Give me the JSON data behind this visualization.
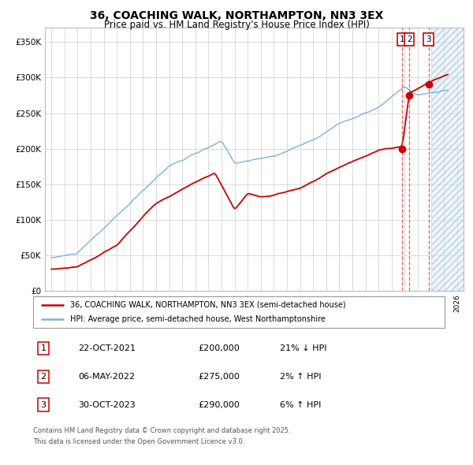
{
  "title": "36, COACHING WALK, NORTHAMPTON, NN3 3EX",
  "subtitle": "Price paid vs. HM Land Registry's House Price Index (HPI)",
  "legend_line1": "36, COACHING WALK, NORTHAMPTON, NN3 3EX (semi-detached house)",
  "legend_line2": "HPI: Average price, semi-detached house, West Northamptonshire",
  "footer1": "Contains HM Land Registry data © Crown copyright and database right 2025.",
  "footer2": "This data is licensed under the Open Government Licence v3.0.",
  "transactions": [
    {
      "num": 1,
      "date": "22-OCT-2021",
      "price": 200000,
      "hpi_rel": "21% ↓ HPI",
      "x": 2021.81
    },
    {
      "num": 2,
      "date": "06-MAY-2022",
      "price": 275000,
      "hpi_rel": "2% ↑ HPI",
      "x": 2022.35
    },
    {
      "num": 3,
      "date": "30-OCT-2023",
      "price": 290000,
      "hpi_rel": "6% ↑ HPI",
      "x": 2023.83
    }
  ],
  "hpi_color": "#7ab4d8",
  "price_color": "#cc0000",
  "vline_color": "#dd4444",
  "hatch_color": "#aaccee",
  "ylim": [
    0,
    370000
  ],
  "xlim_start": 1994.5,
  "xlim_end": 2026.5,
  "yticks": [
    0,
    50000,
    100000,
    150000,
    200000,
    250000,
    300000,
    350000
  ],
  "ytick_labels": [
    "£0",
    "£50K",
    "£100K",
    "£150K",
    "£200K",
    "£250K",
    "£300K",
    "£350K"
  ],
  "xticks": [
    1995,
    1996,
    1997,
    1998,
    1999,
    2000,
    2001,
    2002,
    2003,
    2004,
    2005,
    2006,
    2007,
    2008,
    2009,
    2010,
    2011,
    2012,
    2013,
    2014,
    2015,
    2016,
    2017,
    2018,
    2019,
    2020,
    2021,
    2022,
    2023,
    2024,
    2025,
    2026
  ]
}
